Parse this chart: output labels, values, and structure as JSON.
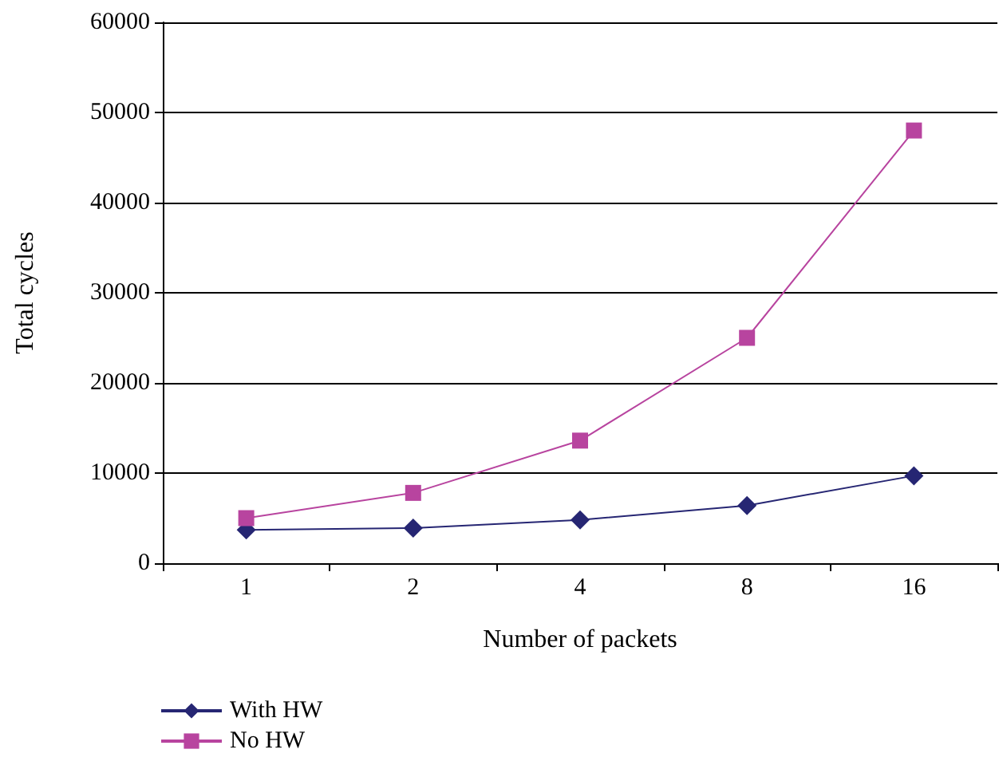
{
  "chart_data": {
    "type": "line",
    "xlabel": "Number of packets",
    "ylabel": "Total cycles",
    "categories": [
      "1",
      "2",
      "4",
      "8",
      "16"
    ],
    "series": [
      {
        "name": "With HW",
        "color": "#262673",
        "values": [
          3700,
          3900,
          4800,
          6400,
          9700
        ],
        "marker": "diamond"
      },
      {
        "name": "No HW",
        "color": "#b8449f",
        "values": [
          5000,
          7800,
          13600,
          25000,
          48000
        ],
        "marker": "square"
      }
    ],
    "ylim": [
      0,
      60000
    ],
    "yticks": [
      0,
      10000,
      20000,
      30000,
      40000,
      50000,
      60000
    ],
    "grid": "y",
    "legend": "bottom left"
  }
}
